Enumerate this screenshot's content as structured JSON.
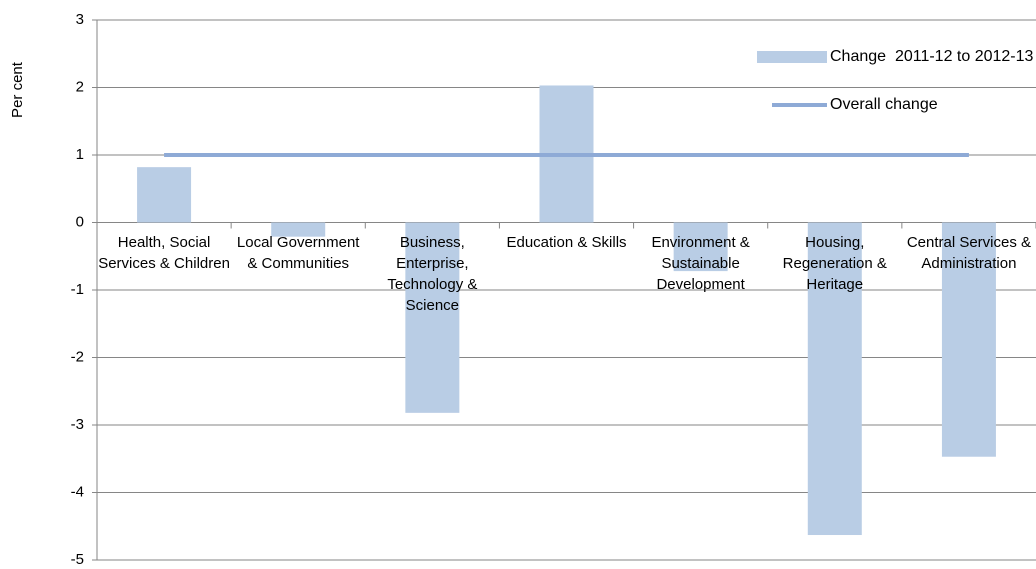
{
  "chart_data": {
    "type": "bar",
    "y_label": "Per cent",
    "categories": [
      "Health, Social Services & Children",
      "Local Government & Communities",
      "Business, Enterprise, Technology & Science",
      "Education & Skills",
      "Environment & Sustainable Development",
      "Housing, Regeneration & Heritage",
      "Central Services & Administration"
    ],
    "series": [
      {
        "name": "Change  2011-12 to 2012-13",
        "color": "#b9cde5",
        "values": [
          0.82,
          -0.21,
          -2.82,
          2.03,
          -0.72,
          -4.63,
          -3.47
        ]
      },
      {
        "name": "Overall change",
        "type": "line",
        "color": "#8eaad6",
        "values": [
          1,
          1,
          1,
          1,
          1,
          1,
          1
        ]
      }
    ],
    "ylim": [
      -5,
      3
    ],
    "yticks": [
      -5,
      -4,
      -3,
      -2,
      -1,
      0,
      1,
      2,
      3
    ],
    "negative_tick_color": "#ff0000",
    "grid": true,
    "legend": "upper right"
  }
}
